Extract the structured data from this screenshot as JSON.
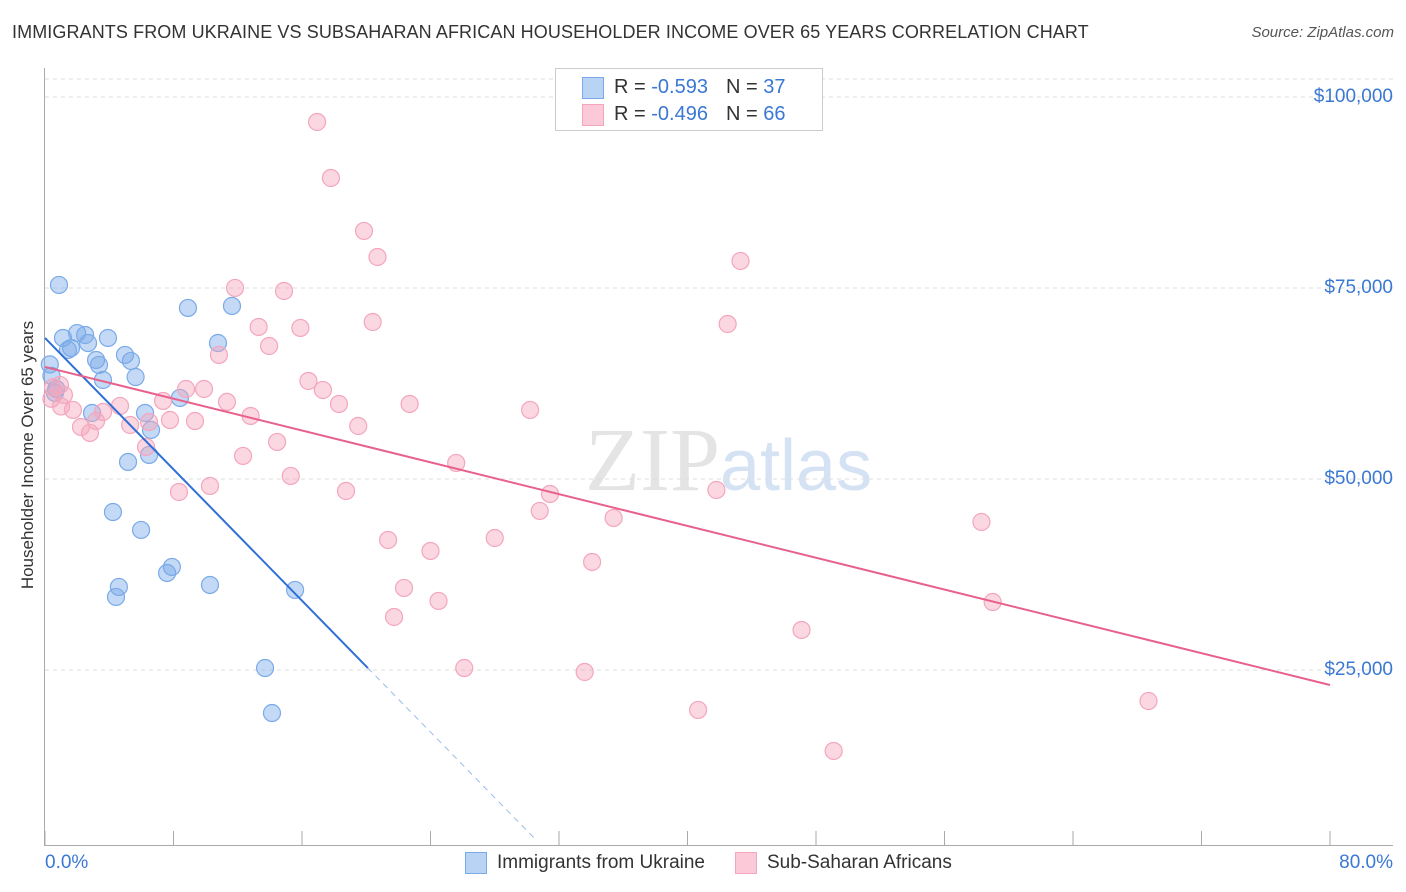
{
  "title": "IMMIGRANTS FROM UKRAINE VS SUBSAHARAN AFRICAN HOUSEHOLDER INCOME OVER 65 YEARS CORRELATION CHART",
  "source": "Source: ZipAtlas.com",
  "legend": {
    "rows": [
      {
        "r_label": "R =",
        "r": "-0.593",
        "n_label": "N =",
        "n": "37"
      },
      {
        "r_label": "R =",
        "r": "-0.496",
        "n_label": "N =",
        "n": "66"
      }
    ]
  },
  "chart_data": {
    "type": "scatter",
    "title": "IMMIGRANTS FROM UKRAINE VS SUBSAHARAN AFRICAN HOUSEHOLDER INCOME OVER 65 YEARS CORRELATION CHART",
    "xlabel": "",
    "ylabel": "Householder Income Over 65 years",
    "xlim": [
      0,
      80
    ],
    "ylim": [
      0,
      102000
    ],
    "x_tick_labels": [
      "0.0%",
      "80.0%"
    ],
    "y_ticks": [
      25000,
      50000,
      75000,
      100000
    ],
    "y_tick_labels": [
      "$25,000",
      "$50,000",
      "$75,000",
      "$100,000"
    ],
    "grid": true,
    "legend_position": "bottom",
    "series": [
      {
        "name": "Immigrants from Ukraine",
        "color": "#7aaae8",
        "line_color": "#2f6fd6",
        "trend": {
          "x0": 0,
          "y0": 68460,
          "x1": 20.1,
          "y1": 25260,
          "dash_to_x": 30.5
        },
        "points": [
          [
            0.87,
            75400
          ],
          [
            1.12,
            68460
          ],
          [
            1.62,
            67150
          ],
          [
            2.0,
            69100
          ],
          [
            2.5,
            68850
          ],
          [
            2.68,
            67800
          ],
          [
            3.92,
            68460
          ],
          [
            1.43,
            66900
          ],
          [
            3.18,
            65580
          ],
          [
            3.36,
            64930
          ],
          [
            4.98,
            66240
          ],
          [
            5.35,
            65450
          ],
          [
            3.61,
            62960
          ],
          [
            5.64,
            63350
          ],
          [
            0.62,
            61260
          ],
          [
            0.4,
            63500
          ],
          [
            0.3,
            65000
          ],
          [
            8.4,
            60610
          ],
          [
            6.23,
            58640
          ],
          [
            6.6,
            56420
          ],
          [
            6.48,
            53150
          ],
          [
            2.93,
            58640
          ],
          [
            5.17,
            52230
          ],
          [
            4.23,
            45680
          ],
          [
            5.98,
            43330
          ],
          [
            8.9,
            72390
          ],
          [
            11.64,
            72650
          ],
          [
            10.77,
            67800
          ],
          [
            7.9,
            38490
          ],
          [
            7.6,
            37700
          ],
          [
            4.6,
            35870
          ],
          [
            4.42,
            34560
          ],
          [
            10.27,
            36130
          ],
          [
            15.57,
            35480
          ],
          [
            13.7,
            25260
          ],
          [
            14.13,
            19370
          ],
          [
            0.7,
            61800
          ]
        ]
      },
      {
        "name": "Sub-Saharan Africans",
        "color": "#f4a6bd",
        "line_color": "#e8608c",
        "trend": {
          "x0": 0,
          "y0": 64670,
          "x1": 80,
          "y1": 23040
        },
        "points": [
          [
            16.94,
            96730
          ],
          [
            17.8,
            89400
          ],
          [
            19.86,
            82470
          ],
          [
            20.7,
            79060
          ],
          [
            43.3,
            78540
          ],
          [
            11.83,
            75010
          ],
          [
            14.88,
            74610
          ],
          [
            20.4,
            70550
          ],
          [
            42.5,
            70290
          ],
          [
            13.3,
            69900
          ],
          [
            15.9,
            69770
          ],
          [
            13.95,
            67410
          ],
          [
            10.83,
            66240
          ],
          [
            16.4,
            62830
          ],
          [
            8.78,
            61780
          ],
          [
            9.9,
            61780
          ],
          [
            17.3,
            61650
          ],
          [
            7.35,
            60220
          ],
          [
            11.33,
            60090
          ],
          [
            18.3,
            59820
          ],
          [
            22.7,
            59820
          ],
          [
            30.2,
            59040
          ],
          [
            4.67,
            59560
          ],
          [
            3.61,
            58770
          ],
          [
            0.93,
            62310
          ],
          [
            1.18,
            61000
          ],
          [
            1.74,
            59040
          ],
          [
            12.8,
            58250
          ],
          [
            6.48,
            57460
          ],
          [
            7.78,
            57720
          ],
          [
            9.34,
            57590
          ],
          [
            3.18,
            57590
          ],
          [
            5.3,
            57070
          ],
          [
            19.5,
            56940
          ],
          [
            2.24,
            56810
          ],
          [
            2.8,
            56030
          ],
          [
            6.29,
            54190
          ],
          [
            14.45,
            54850
          ],
          [
            12.33,
            53020
          ],
          [
            25.6,
            52100
          ],
          [
            15.3,
            50400
          ],
          [
            8.34,
            48300
          ],
          [
            10.27,
            49090
          ],
          [
            18.74,
            48430
          ],
          [
            31.44,
            48040
          ],
          [
            41.8,
            48560
          ],
          [
            30.8,
            45820
          ],
          [
            35.4,
            44900
          ],
          [
            21.36,
            42020
          ],
          [
            28.0,
            42280
          ],
          [
            24.0,
            40580
          ],
          [
            34.06,
            39140
          ],
          [
            58.3,
            44380
          ],
          [
            22.35,
            35740
          ],
          [
            24.5,
            34040
          ],
          [
            59.0,
            33900
          ],
          [
            21.73,
            31940
          ],
          [
            47.1,
            30240
          ],
          [
            26.1,
            25260
          ],
          [
            33.6,
            24740
          ],
          [
            40.66,
            19770
          ],
          [
            49.1,
            14400
          ],
          [
            68.7,
            20940
          ],
          [
            0.5,
            62000
          ],
          [
            0.4,
            60500
          ],
          [
            1.0,
            59500
          ]
        ]
      }
    ]
  }
}
